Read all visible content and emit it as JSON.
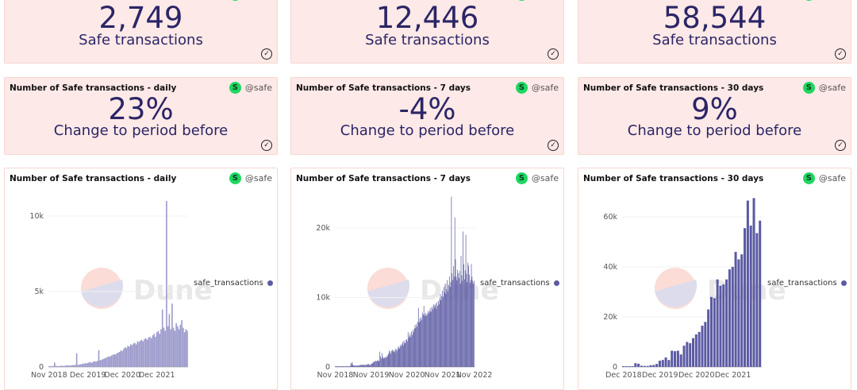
{
  "owner": "@safe",
  "colors": {
    "card_bg": "#fde9e7",
    "text": "#2b2566",
    "bar": "#5b5aa3",
    "daily_fill": "#9b9acb",
    "avatar": "#1ed760"
  },
  "counters": [
    {
      "value": "2,749",
      "label": "Safe transactions"
    },
    {
      "value": "12,446",
      "label": "Safe transactions"
    },
    {
      "value": "58,544",
      "label": "Safe transactions"
    }
  ],
  "changes": [
    {
      "title": "Number of Safe transactions - daily",
      "value": "23%",
      "label": "Change to period before"
    },
    {
      "title": "Number of Safe transactions - 7 days",
      "value": "-4%",
      "label": "Change to period before"
    },
    {
      "title": "Number of Safe transactions - 30 days",
      "value": "9%",
      "label": "Change to period before"
    }
  ],
  "watermark": "Dune",
  "chart_data": [
    {
      "type": "area",
      "title": "Number of Safe transactions - daily",
      "legend": "safe_transactions",
      "legend_position": "right",
      "ylim": [
        0,
        11000
      ],
      "yticks": [
        {
          "v": 0,
          "label": "0"
        },
        {
          "v": 5000,
          "label": "5k"
        },
        {
          "v": 10000,
          "label": "10k"
        }
      ],
      "xticks": [
        {
          "i": 0,
          "label": "Nov 2018"
        },
        {
          "i": 28,
          "label": "Dec 2019"
        },
        {
          "i": 53,
          "label": "Dec 2020"
        },
        {
          "i": 78,
          "label": "Dec 2021"
        }
      ],
      "values": [
        50,
        60,
        50,
        70,
        300,
        80,
        60,
        60,
        70,
        90,
        60,
        80,
        90,
        100,
        110,
        90,
        100,
        130,
        120,
        150,
        900,
        140,
        160,
        180,
        200,
        220,
        250,
        230,
        270,
        300,
        320,
        280,
        350,
        380,
        360,
        400,
        1100,
        450,
        480,
        520,
        560,
        600,
        650,
        700,
        680,
        750,
        800,
        850,
        820,
        900,
        950,
        1000,
        1100,
        1050,
        1200,
        1300,
        1250,
        1400,
        1350,
        1500,
        1450,
        1550,
        1600,
        1500,
        1700,
        1650,
        1750,
        1800,
        1700,
        1850,
        1900,
        1800,
        1950,
        2000,
        1900,
        2100,
        2200,
        2000,
        2300,
        2400,
        2200,
        2500,
        3800,
        2600,
        2400,
        11000,
        2700,
        3500,
        2500,
        4200,
        2600,
        2400,
        2900,
        2700,
        2500,
        2800,
        3100,
        2600,
        2300,
        2500,
        2400
      ]
    },
    {
      "type": "bar",
      "title": "Number of Safe transactions - 7 days",
      "legend": "safe_transactions",
      "legend_position": "right",
      "ylim": [
        0,
        25000
      ],
      "yticks": [
        {
          "v": 0,
          "label": "0"
        },
        {
          "v": 10000,
          "label": "10k"
        },
        {
          "v": 20000,
          "label": "20k"
        }
      ],
      "xticks": [
        {
          "i": 0,
          "label": "Nov 2018"
        },
        {
          "i": 52,
          "label": "Nov 2019"
        },
        {
          "i": 104,
          "label": "Nov 2020"
        },
        {
          "i": 156,
          "label": "Nov 2021"
        },
        {
          "i": 202,
          "label": "Nov 2022"
        }
      ],
      "values": [
        100,
        100,
        100,
        100,
        100,
        100,
        100,
        100,
        100,
        100,
        100,
        100,
        100,
        100,
        100,
        100,
        100,
        100,
        100,
        100,
        100,
        100,
        200,
        600,
        400,
        700,
        300,
        200,
        200,
        200,
        200,
        200,
        200,
        200,
        200,
        200,
        300,
        300,
        300,
        300,
        300,
        300,
        300,
        300,
        300,
        300,
        300,
        400,
        400,
        400,
        300,
        300,
        400,
        500,
        500,
        600,
        800,
        700,
        800,
        900,
        800,
        900,
        1000,
        800,
        900,
        2200,
        1500,
        1200,
        2000,
        1500,
        1300,
        1200,
        1400,
        1300,
        1500,
        1400,
        1600,
        1800,
        2000,
        2400,
        2200,
        1900,
        2300,
        2500,
        2300,
        2200,
        2400,
        2100,
        2600,
        2500,
        2300,
        2700,
        3000,
        2600,
        2800,
        3200,
        3000,
        3300,
        3600,
        3100,
        3800,
        3500,
        3400,
        3900,
        4000,
        3700,
        5000,
        4200,
        4500,
        4800,
        4300,
        5100,
        4600,
        5300,
        5000,
        5500,
        6000,
        5600,
        6200,
        5800,
        6500,
        8500,
        6400,
        7000,
        6600,
        7200,
        6800,
        7800,
        7500,
        8800,
        7600,
        7300,
        7800,
        7400,
        7600,
        8000,
        7700,
        8200,
        7900,
        8500,
        8000,
        8700,
        8300,
        9000,
        8600,
        8900,
        9100,
        8400,
        9300,
        8800,
        9500,
        9000,
        9800,
        10500,
        9600,
        10200,
        11000,
        10100,
        11500,
        10800,
        12000,
        10500,
        11200,
        12500,
        10900,
        11800,
        13000,
        11500,
        12200,
        24500,
        13500,
        12500,
        14500,
        13000,
        21500,
        15500,
        13000,
        12500,
        14000,
        13500,
        12800,
        13800,
        12000,
        16000,
        13200,
        12400,
        19500,
        14800,
        12600,
        13900,
        19000,
        13400,
        12200,
        15000,
        14600,
        13300,
        12100,
        12500,
        14800,
        13000,
        12400,
        12000,
        12400
      ]
    },
    {
      "type": "bar",
      "title": "Number of Safe transactions - 30 days",
      "legend": "safe_transactions",
      "legend_position": "right",
      "ylim": [
        0,
        68000
      ],
      "yticks": [
        {
          "v": 0,
          "label": "0"
        },
        {
          "v": 20000,
          "label": "20k"
        },
        {
          "v": 40000,
          "label": "40k"
        },
        {
          "v": 60000,
          "label": "60k"
        }
      ],
      "xticks": [
        {
          "i": 0,
          "label": "Dec 2018"
        },
        {
          "i": 12,
          "label": "Dec 2019"
        },
        {
          "i": 24,
          "label": "Dec 2020"
        },
        {
          "i": 36,
          "label": "Dec 2021"
        }
      ],
      "values": [
        300,
        300,
        300,
        300,
        1500,
        1300,
        500,
        400,
        400,
        700,
        800,
        1200,
        2500,
        2800,
        3800,
        2800,
        6500,
        6300,
        6500,
        5000,
        8500,
        10000,
        9500,
        11500,
        13000,
        14000,
        16500,
        18000,
        23000,
        28000,
        27500,
        35000,
        32500,
        33000,
        35000,
        39000,
        40000,
        46000,
        43000,
        45000,
        55500,
        66500,
        56500,
        67500,
        53500,
        58500
      ]
    }
  ]
}
